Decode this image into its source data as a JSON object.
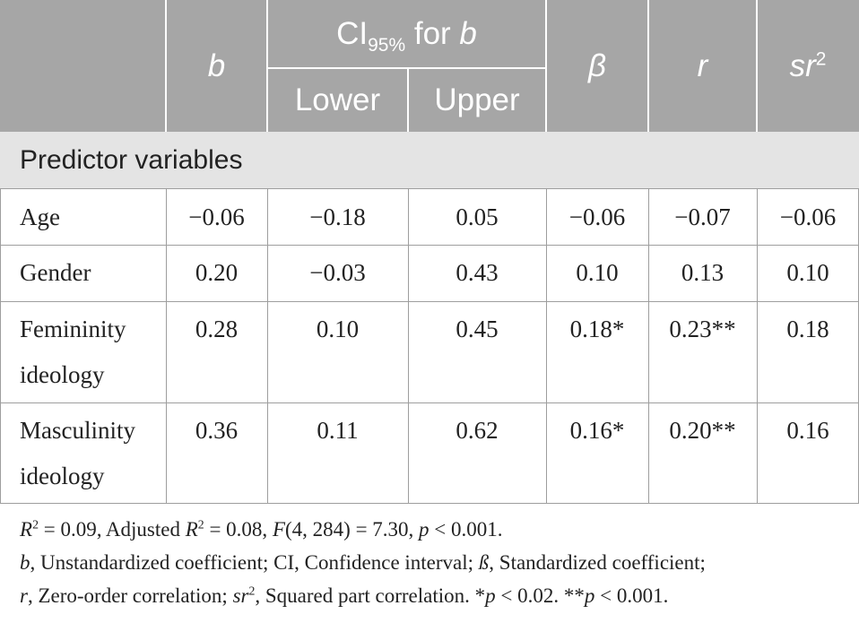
{
  "header": {
    "b": "b",
    "ci_prefix": "CI",
    "ci_sub": "95%",
    "ci_suffix": " for ",
    "ci_b": "b",
    "lower": "Lower",
    "upper": "Upper",
    "beta": "β",
    "r": "r",
    "sr": "sr",
    "sr_sup": "2"
  },
  "section_label": "Predictor variables",
  "rows": [
    {
      "label1": "Age",
      "label2": "",
      "b": "−0.06",
      "lower": "−0.18",
      "upper": "0.05",
      "beta": "−0.06",
      "r": "−0.07",
      "sr2": "−0.06"
    },
    {
      "label1": "Gender",
      "label2": "",
      "b": "0.20",
      "lower": "−0.03",
      "upper": "0.43",
      "beta": "0.10",
      "r": "0.13",
      "sr2": "0.10"
    },
    {
      "label1": "Femininity",
      "label2": "ideology",
      "b": "0.28",
      "lower": "0.10",
      "upper": "0.45",
      "beta": "0.18*",
      "r": "0.23**",
      "sr2": "0.18"
    },
    {
      "label1": "Masculinity",
      "label2": "ideology",
      "b": "0.36",
      "lower": "0.11",
      "upper": "0.62",
      "beta": "0.16*",
      "r": "0.20**",
      "sr2": "0.16"
    }
  ],
  "notes": {
    "line1": {
      "R": "R",
      "sup1": "2",
      "t1": " = 0.09, Adjusted ",
      "R2": "R",
      "sup2": "2",
      "t2": " = 0.08, ",
      "F": "F",
      "t3": "(4, 284) = 7.30, ",
      "p": "p",
      "t4": " < 0.001."
    },
    "line2": {
      "b": "b",
      "t1": ", Unstandardized coefficient; CI, Confidence interval; ",
      "beta": "ß",
      "t2": ", Standardized coefficient;"
    },
    "line3": {
      "r": "r",
      "t1": ", Zero-order correlation; ",
      "sr": "sr",
      "sup": "2",
      "t2": ", Squared part correlation. *",
      "p1": "p",
      "t3": " < 0.02. **",
      "p2": "p",
      "t4": " < 0.001."
    }
  }
}
